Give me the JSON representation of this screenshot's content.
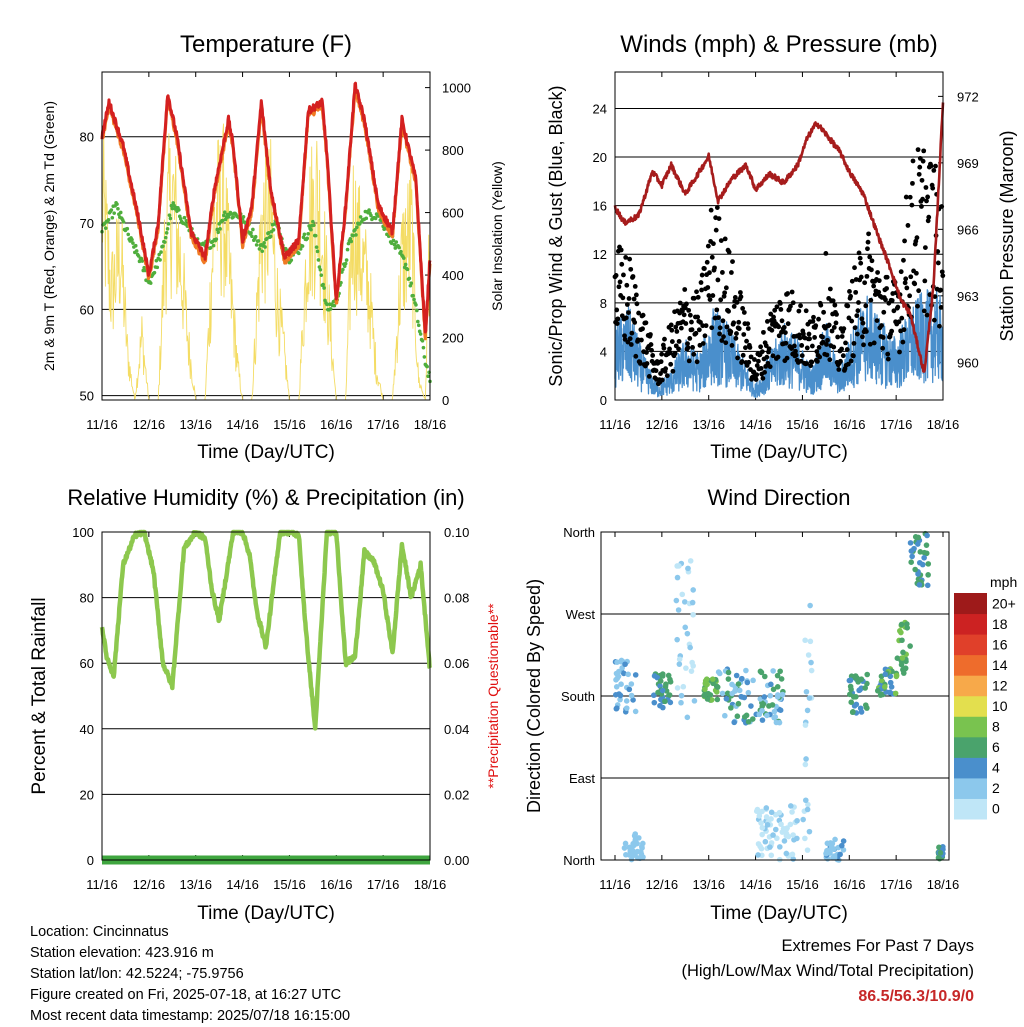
{
  "x_ticks": [
    "11/16",
    "12/16",
    "13/16",
    "14/16",
    "15/16",
    "16/16",
    "17/16",
    "18/16"
  ],
  "panels": {
    "temperature": {
      "title": "Temperature (F)",
      "xlabel": "Time (Day/UTC)",
      "ylabel_left": "2m & 9m T (Red, Orange) & 2m Td (Green)",
      "ylabel_right": "Solar Insolation (Yellow)",
      "left_ticks": [
        "50",
        "60",
        "70",
        "80"
      ],
      "right_ticks": [
        "0",
        "200",
        "400",
        "600",
        "800",
        "1000"
      ]
    },
    "winds": {
      "title": "Winds (mph) & Pressure (mb)",
      "xlabel": "Time (Day/UTC)",
      "ylabel_left": "Sonic/Prop Wind & Gust (Blue, Black)",
      "ylabel_right": "Station Pressure (Maroon)",
      "left_ticks": [
        "0",
        "4",
        "8",
        "12",
        "16",
        "20",
        "24"
      ],
      "right_ticks": [
        "960",
        "963",
        "966",
        "969",
        "972"
      ]
    },
    "humidity": {
      "title": "Relative Humidity (%) & Precipitation (in)",
      "xlabel": "Time (Day/UTC)",
      "ylabel_left": "Percent & Total Rainfall",
      "ylabel_right": "**Precipitation Questionable**",
      "left_ticks": [
        "0",
        "20",
        "40",
        "60",
        "80",
        "100"
      ],
      "right_ticks": [
        "0.00",
        "0.02",
        "0.04",
        "0.06",
        "0.08",
        "0.10"
      ]
    },
    "direction": {
      "title": "Wind Direction",
      "xlabel": "Time (Day/UTC)",
      "ylabel_left": "Direction (Colored By Speed)",
      "left_ticks": [
        "North",
        "East",
        "South",
        "West",
        "North"
      ],
      "colorbar_title": "mph",
      "colorbar_labels": [
        "0",
        "2",
        "4",
        "6",
        "8",
        "10",
        "12",
        "14",
        "16",
        "18",
        "20+"
      ],
      "colorbar_colors": [
        "#bfe6f7",
        "#8cc8ec",
        "#4a8fcc",
        "#4aa36c",
        "#79c34f",
        "#e3df4e",
        "#f7a94a",
        "#ee6c2c",
        "#e0402a",
        "#cc2222",
        "#9e1a1a"
      ]
    }
  },
  "colors": {
    "temp_2m": "#d42020",
    "temp_9m": "#f07a24",
    "dewpoint": "#4fae3c",
    "solar": "#f4dc64",
    "wind": "#4a8fcc",
    "gust": "#000000",
    "pressure": "#a61c1c",
    "rh": "#8dc84e",
    "precip": "#3fa63f",
    "questionable": "#e01010"
  },
  "footer": {
    "location": "Location: Cincinnatus",
    "elevation": "Station elevation: 423.916 m",
    "latlon": "Station lat/lon: 42.5224; -75.9756",
    "created": "Figure created on Fri, 2025-07-18, at 16:27 UTC",
    "recent": "Most recent data timestamp: 2025/07/18 16:15:00"
  },
  "extremes": {
    "title": "Extremes For Past 7 Days",
    "subtitle": "(High/Low/Max Wind/Total Precipitation)",
    "values": "86.5/56.3/10.9/0"
  },
  "chart_data": [
    {
      "type": "line",
      "title": "Temperature (F)",
      "xlabel": "Time (Day/UTC)",
      "ylabel": "2m & 9m T (Red, Orange) & 2m Td (Green)",
      "ylim": [
        49.5,
        87.5
      ],
      "y2label": "Solar Insolation (Yellow)",
      "y2lim": [
        0,
        1050
      ],
      "x_range_days": [
        0,
        7
      ],
      "series": [
        {
          "name": "2m T",
          "axis": "left",
          "x": [
            0,
            0.15,
            0.45,
            0.8,
            1.0,
            1.2,
            1.4,
            1.6,
            1.9,
            2.2,
            2.4,
            2.7,
            2.8,
            3.0,
            3.2,
            3.4,
            3.6,
            3.9,
            4.2,
            4.4,
            4.7,
            4.8,
            5.0,
            5.2,
            5.4,
            5.6,
            5.9,
            6.2,
            6.4,
            6.7,
            6.9,
            7.0
          ],
          "y": [
            80,
            84,
            79,
            70,
            64,
            70,
            85,
            80,
            69,
            66,
            74,
            82,
            79,
            68,
            72,
            84,
            74,
            66,
            68,
            83,
            84,
            78,
            61,
            72,
            86,
            82,
            72,
            69,
            82,
            75,
            57,
            66
          ]
        },
        {
          "name": "9m T",
          "axis": "left",
          "x": [
            0,
            0.15,
            0.45,
            0.8,
            1.0,
            1.2,
            1.4,
            1.6,
            1.9,
            2.2,
            2.4,
            2.7,
            2.8,
            3.0,
            3.2,
            3.4,
            3.6,
            3.9,
            4.2,
            4.4,
            4.7,
            4.8,
            5.0,
            5.2,
            5.4,
            5.6,
            5.9,
            6.2,
            6.4,
            6.7,
            6.9,
            7.0
          ],
          "y": [
            79.5,
            83.5,
            78.5,
            69.5,
            63.5,
            69.5,
            84.5,
            79.5,
            68.5,
            65.5,
            73.5,
            81.5,
            78.5,
            67.5,
            71.5,
            83.5,
            73.5,
            65.5,
            67.5,
            82.5,
            83.5,
            77.5,
            60.5,
            71.5,
            85.5,
            81.5,
            71.5,
            68.5,
            81.5,
            74.5,
            56.5,
            65.5
          ]
        },
        {
          "name": "2m Td",
          "axis": "left",
          "x": [
            0,
            0.3,
            0.6,
            0.8,
            1.0,
            1.3,
            1.5,
            1.8,
            2.1,
            2.4,
            2.6,
            2.9,
            3.2,
            3.4,
            3.7,
            4.0,
            4.2,
            4.5,
            4.8,
            5.0,
            5.3,
            5.6,
            5.9,
            6.2,
            6.5,
            6.7,
            6.9,
            7.0
          ],
          "y": [
            69,
            72,
            68,
            66,
            63,
            67,
            72,
            70,
            67,
            68,
            71,
            71,
            69,
            67,
            70,
            66,
            67,
            70,
            60,
            61,
            68,
            71,
            71,
            68,
            65,
            60,
            54,
            52
          ]
        },
        {
          "name": "Solar Insolation",
          "axis": "right",
          "x": [
            0,
            0.2,
            0.4,
            0.55,
            0.7,
            0.85,
            1.0,
            1.2,
            1.35,
            1.5,
            1.7,
            1.85,
            2.0,
            2.2,
            2.4,
            2.6,
            2.75,
            2.9,
            3.0,
            3.2,
            3.4,
            3.6,
            3.75,
            3.9,
            4.0,
            4.2,
            4.4,
            4.6,
            4.75,
            4.9,
            5.0,
            5.2,
            5.35,
            5.5,
            5.7,
            5.85,
            6.0,
            6.2,
            6.4,
            6.6,
            6.75,
            6.9,
            7.0
          ],
          "y": [
            950,
            500,
            700,
            200,
            0,
            300,
            0,
            0,
            750,
            950,
            600,
            250,
            0,
            0,
            850,
            900,
            500,
            150,
            0,
            0,
            800,
            850,
            450,
            200,
            0,
            0,
            800,
            950,
            650,
            250,
            0,
            0,
            850,
            700,
            500,
            150,
            0,
            0,
            650,
            800,
            100,
            0,
            900
          ]
        }
      ]
    },
    {
      "type": "line",
      "title": "Winds (mph) & Pressure (mb)",
      "xlabel": "Time (Day/UTC)",
      "ylabel": "Sonic/Prop Wind & Gust (Blue, Black)",
      "ylim": [
        0,
        27
      ],
      "y2label": "Station Pressure (Maroon)",
      "y2lim": [
        958.3,
        973.1
      ],
      "x_range_days": [
        0,
        7
      ],
      "series": [
        {
          "name": "Wind",
          "axis": "left",
          "x": [
            0,
            0.3,
            0.6,
            0.9,
            1.2,
            1.5,
            1.8,
            2.1,
            2.4,
            2.7,
            3.0,
            3.3,
            3.6,
            3.9,
            4.2,
            4.5,
            4.8,
            5.1,
            5.4,
            5.7,
            6.0,
            6.3,
            6.6,
            6.9,
            7.0
          ],
          "y": [
            5,
            6,
            3,
            1,
            2,
            4,
            3,
            6,
            5,
            3,
            1,
            3,
            5,
            4,
            2,
            5,
            2,
            5,
            7,
            5,
            4,
            6,
            7,
            7,
            6
          ]
        },
        {
          "name": "Gust",
          "axis": "left",
          "x": [
            0,
            0.3,
            0.6,
            0.9,
            1.2,
            1.5,
            1.8,
            2.1,
            2.4,
            2.7,
            3.0,
            3.3,
            3.6,
            3.9,
            4.2,
            4.5,
            4.8,
            5.1,
            5.4,
            5.7,
            6.0,
            6.3,
            6.6,
            6.9,
            7.0
          ],
          "y": [
            12,
            11,
            7,
            3,
            6,
            9,
            8,
            16,
            12,
            8,
            3,
            7,
            9,
            8,
            6,
            11,
            5,
            10,
            13,
            10,
            9,
            18,
            20,
            17,
            14
          ]
        },
        {
          "name": "Station Pressure",
          "axis": "right",
          "x": [
            0,
            0.2,
            0.5,
            0.8,
            1.0,
            1.2,
            1.5,
            1.8,
            2.0,
            2.2,
            2.5,
            2.8,
            3.0,
            3.3,
            3.6,
            3.9,
            4.1,
            4.3,
            4.5,
            4.8,
            5.0,
            5.3,
            5.6,
            5.9,
            6.1,
            6.3,
            6.6,
            6.8,
            7.0
          ],
          "y": [
            967.0,
            966.3,
            966.6,
            968.6,
            968.0,
            968.9,
            967.6,
            968.6,
            969.3,
            967.3,
            968.3,
            968.9,
            967.8,
            968.5,
            968.1,
            968.9,
            970.1,
            970.8,
            970.3,
            969.5,
            968.6,
            967.6,
            965.8,
            964.1,
            962.8,
            962.2,
            959.5,
            963.5,
            971.8
          ]
        }
      ]
    },
    {
      "type": "line",
      "title": "Relative Humidity (%) & Precipitation (in)",
      "xlabel": "Time (Day/UTC)",
      "ylabel": "Percent & Total Rainfall",
      "ylim": [
        0,
        100
      ],
      "y2label": "**Precipitation Questionable**",
      "y2lim": [
        0,
        0.1
      ],
      "x_range_days": [
        0,
        7
      ],
      "series": [
        {
          "name": "Relative Humidity",
          "axis": "left",
          "x": [
            0,
            0.1,
            0.25,
            0.45,
            0.7,
            0.9,
            1.1,
            1.3,
            1.5,
            1.75,
            2.0,
            2.2,
            2.35,
            2.5,
            2.8,
            3.0,
            3.15,
            3.3,
            3.5,
            3.8,
            4.0,
            4.2,
            4.35,
            4.55,
            4.8,
            5.0,
            5.2,
            5.4,
            5.6,
            5.8,
            6.0,
            6.2,
            6.4,
            6.6,
            6.8,
            7.0
          ],
          "y": [
            71,
            62,
            56,
            90,
            99,
            100,
            88,
            60,
            53,
            95,
            100,
            98,
            82,
            73,
            100,
            100,
            93,
            76,
            65,
            100,
            100,
            99,
            70,
            40,
            100,
            100,
            60,
            62,
            94,
            91,
            82,
            63,
            96,
            80,
            90,
            58
          ]
        },
        {
          "name": "Total Precipitation",
          "axis": "right",
          "x": [
            0,
            7
          ],
          "y": [
            0,
            0
          ]
        }
      ]
    },
    {
      "type": "scatter",
      "title": "Wind Direction",
      "xlabel": "Time (Day/UTC)",
      "ylabel": "Direction (Colored By Speed)",
      "y_categories": [
        "North",
        "East",
        "South",
        "West",
        "North"
      ],
      "ylim_degrees": [
        0,
        360
      ],
      "x_range_days": [
        0,
        7
      ],
      "colorbar": {
        "title": "mph",
        "levels": [
          0,
          2,
          4,
          6,
          8,
          10,
          12,
          14,
          16,
          18,
          20
        ]
      },
      "clusters": [
        {
          "x": [
            0.0,
            0.45
          ],
          "direction": [
            160,
            220
          ],
          "speed": [
            2,
            6
          ]
        },
        {
          "x": [
            0.2,
            0.6
          ],
          "direction": [
            0,
            30
          ],
          "speed": [
            2,
            4
          ]
        },
        {
          "x": [
            0.8,
            1.2
          ],
          "direction": [
            165,
            205
          ],
          "speed": [
            4,
            8
          ]
        },
        {
          "x": [
            1.3,
            1.7
          ],
          "direction": [
            150,
            330
          ],
          "speed": [
            0,
            4
          ]
        },
        {
          "x": [
            1.9,
            2.2
          ],
          "direction": [
            175,
            200
          ],
          "speed": [
            6,
            10
          ]
        },
        {
          "x": [
            2.2,
            3.6
          ],
          "direction": [
            150,
            210
          ],
          "speed": [
            2,
            8
          ]
        },
        {
          "x": [
            3.0,
            3.9
          ],
          "direction": [
            0,
            60
          ],
          "speed": [
            0,
            3
          ]
        },
        {
          "x": [
            4.0,
            4.2
          ],
          "direction": [
            0,
            330
          ],
          "speed": [
            0,
            4
          ]
        },
        {
          "x": [
            4.5,
            4.9
          ],
          "direction": [
            0,
            25
          ],
          "speed": [
            2,
            5
          ]
        },
        {
          "x": [
            5.0,
            5.4
          ],
          "direction": [
            160,
            205
          ],
          "speed": [
            4,
            8
          ]
        },
        {
          "x": [
            5.6,
            6.0
          ],
          "direction": [
            180,
            210
          ],
          "speed": [
            4,
            10
          ]
        },
        {
          "x": [
            6.0,
            6.3
          ],
          "direction": [
            200,
            270
          ],
          "speed": [
            6,
            10
          ]
        },
        {
          "x": [
            6.3,
            6.7
          ],
          "direction": [
            300,
            360
          ],
          "speed": [
            4,
            8
          ]
        },
        {
          "x": [
            6.9,
            7.0
          ],
          "direction": [
            0,
            15
          ],
          "speed": [
            4,
            8
          ]
        }
      ]
    }
  ]
}
